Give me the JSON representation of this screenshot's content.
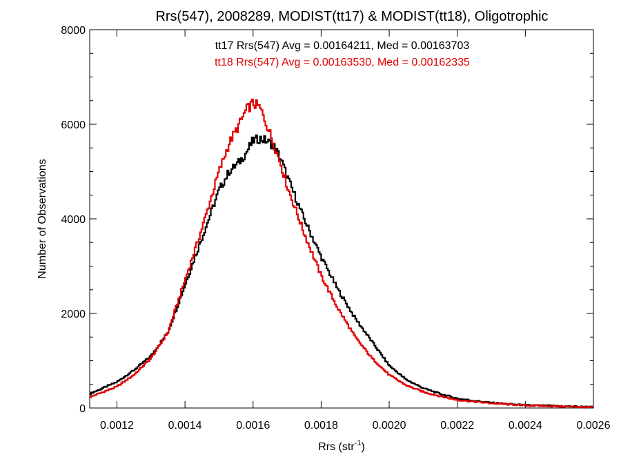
{
  "chart_data": {
    "type": "line",
    "title": "Rrs(547), 2008289, MODIST(tt17) & MODIST(tt18), Oligotrophic",
    "xlabel": "Rrs (str",
    "xlabel_sup": "-1",
    "xlabel_end": ")",
    "ylabel": "Number of Observations",
    "xlim": [
      0.00112,
      0.0026
    ],
    "ylim": [
      0,
      8000
    ],
    "x_ticks": [
      0.0012,
      0.0014,
      0.0016,
      0.0018,
      0.002,
      0.0022,
      0.0024,
      0.0026
    ],
    "x_tick_labels": [
      "0.0012",
      "0.0014",
      "0.0016",
      "0.0018",
      "0.0020",
      "0.0022",
      "0.0024",
      "0.0026"
    ],
    "y_ticks": [
      0,
      2000,
      4000,
      6000,
      8000
    ],
    "y_tick_labels": [
      "0",
      "2000",
      "4000",
      "6000",
      "8000"
    ],
    "grid": false,
    "annotations": [
      {
        "text": "tt17 Rrs(547) Avg = 0.00164211, Med = 0.00163703",
        "color": "#000000"
      },
      {
        "text": "tt18 Rrs(547) Avg = 0.00163530, Med = 0.00162335",
        "color": "#e00000"
      }
    ],
    "series": [
      {
        "color": "#000000",
        "x": [
          0.00112,
          0.0012,
          0.00125,
          0.0013,
          0.00135,
          0.0014,
          0.00145,
          0.0015,
          0.00153,
          0.00156,
          0.00158,
          0.0016,
          0.00162,
          0.00164,
          0.00166,
          0.00168,
          0.0017,
          0.00175,
          0.0018,
          0.00185,
          0.0019,
          0.00195,
          0.002,
          0.00205,
          0.0021,
          0.00215,
          0.0022,
          0.0023,
          0.0024,
          0.0025,
          0.0026
        ],
        "values": [
          300,
          550,
          800,
          1100,
          1600,
          2600,
          3600,
          4600,
          5000,
          5200,
          5400,
          5650,
          5700,
          5650,
          5550,
          5300,
          4900,
          4000,
          3200,
          2500,
          1900,
          1400,
          900,
          600,
          420,
          300,
          200,
          110,
          60,
          40,
          20
        ]
      },
      {
        "color": "#e00000",
        "x": [
          0.00112,
          0.0012,
          0.00125,
          0.0013,
          0.00135,
          0.0014,
          0.00145,
          0.0015,
          0.00153,
          0.00156,
          0.00158,
          0.0016,
          0.00162,
          0.00164,
          0.00166,
          0.00168,
          0.0017,
          0.00175,
          0.0018,
          0.00185,
          0.0019,
          0.00195,
          0.002,
          0.00205,
          0.0021,
          0.00215,
          0.0022,
          0.0023,
          0.0024,
          0.0025,
          0.0026
        ],
        "values": [
          230,
          450,
          700,
          1050,
          1600,
          2700,
          3800,
          5000,
          5600,
          6000,
          6300,
          6450,
          6350,
          6000,
          5600,
          5200,
          4700,
          3700,
          2800,
          2100,
          1500,
          1050,
          700,
          480,
          340,
          250,
          170,
          100,
          55,
          35,
          15
        ]
      }
    ]
  }
}
